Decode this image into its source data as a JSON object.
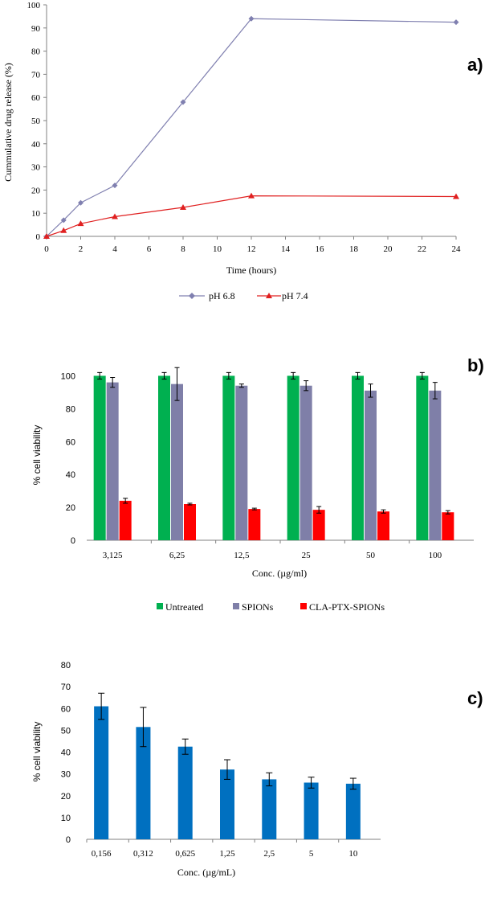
{
  "chart_data": [
    {
      "type": "line",
      "panel_label": "a)",
      "x": [
        0,
        1,
        2,
        4,
        8,
        12,
        24
      ],
      "series": [
        {
          "name": "pH 6.8",
          "color": "#8080b0",
          "marker": "diamond",
          "values": [
            0,
            7,
            14.5,
            22,
            58,
            94,
            92.5
          ]
        },
        {
          "name": "pH 7.4",
          "color": "#e02020",
          "marker": "triangle",
          "values": [
            0,
            2.5,
            5.5,
            8.5,
            12.5,
            17.5,
            17.2
          ]
        }
      ],
      "xlabel": "Time (hours)",
      "ylabel": "Cummulative  drug release  (%)",
      "xlim": [
        0,
        24
      ],
      "ylim": [
        0,
        100
      ],
      "xticks": [
        "0",
        "2",
        "4",
        "6",
        "8",
        "10",
        "12",
        "14",
        "16",
        "18",
        "20",
        "22",
        "24"
      ],
      "yticks": [
        "0",
        "10",
        "20",
        "30",
        "40",
        "50",
        "60",
        "70",
        "80",
        "90",
        "100"
      ],
      "legend_position": "bottom",
      "grid": false
    },
    {
      "type": "bar",
      "panel_label": "b)",
      "categories": [
        "3,125",
        "6,25",
        "12,5",
        "25",
        "50",
        "100"
      ],
      "series": [
        {
          "name": "Untreated",
          "color": "#00b050",
          "values": [
            100,
            100,
            100,
            100,
            100,
            100
          ],
          "errors": [
            2,
            2,
            2,
            2,
            2,
            2
          ]
        },
        {
          "name": "SPIONs",
          "color": "#7f7fa8",
          "values": [
            96,
            95,
            94,
            94,
            91,
            91
          ],
          "errors": [
            3,
            10,
            1,
            3,
            4,
            5
          ]
        },
        {
          "name": "CLA-PTX-SPIONs",
          "color": "#ff0000",
          "values": [
            24,
            22,
            19,
            18.5,
            17.5,
            17
          ],
          "errors": [
            1.5,
            0.5,
            0.5,
            2,
            1,
            1
          ]
        }
      ],
      "xlabel": "Conc. (µg/ml)",
      "ylabel": "% cell viability",
      "ylim": [
        0,
        110
      ],
      "yticks": [
        "0",
        "20",
        "40",
        "60",
        "80",
        "100"
      ],
      "legend_position": "bottom",
      "grid": false
    },
    {
      "type": "bar",
      "panel_label": "c)",
      "categories": [
        "0,156",
        "0,312",
        "0,625",
        "1,25",
        "2,5",
        "5",
        "10"
      ],
      "series": [
        {
          "color": "#0070c0",
          "values": [
            61,
            51.5,
            42.5,
            32,
            27.5,
            26,
            25.5
          ],
          "errors": [
            6,
            9,
            3.5,
            4.5,
            3,
            2.5,
            2.5
          ]
        }
      ],
      "xlabel": "Conc. (µg/mL)",
      "ylabel": "% cell viability",
      "ylim": [
        0,
        80
      ],
      "yticks": [
        "0",
        "10",
        "20",
        "30",
        "40",
        "50",
        "60",
        "70",
        "80"
      ],
      "grid": false
    }
  ]
}
